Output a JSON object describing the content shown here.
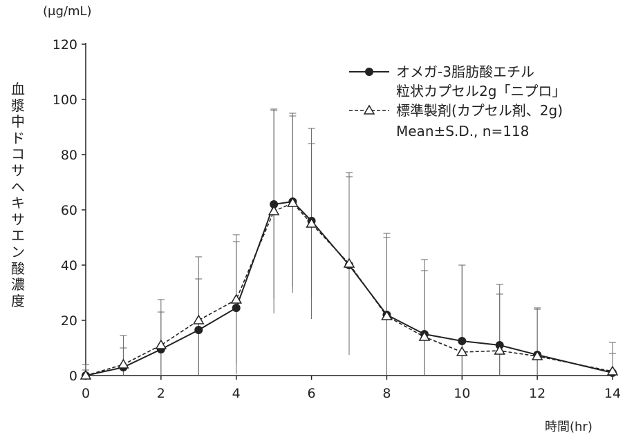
{
  "chart_data": {
    "type": "line",
    "unit_label": "(μg/mL)",
    "ylabel": "血漿中ドコサヘキサエン酸濃度",
    "xlabel": "時間(hr)",
    "xlim": [
      0,
      14
    ],
    "ylim": [
      0,
      120
    ],
    "x_ticks": [
      "0",
      "2",
      "4",
      "6",
      "8",
      "10",
      "12",
      "14"
    ],
    "y_ticks": [
      "0",
      "20",
      "40",
      "60",
      "80",
      "100",
      "120"
    ],
    "x": [
      0,
      1,
      2,
      3,
      4,
      5,
      5.5,
      6,
      7,
      8,
      9,
      10,
      11,
      12,
      14
    ],
    "series": [
      {
        "name": "オメガ-3脂肪酸エチル粒状カプセル2g「ニプロ」",
        "name_line1": "オメガ-3脂肪酸エチル",
        "name_line2": "粒状カプセル2g「ニプロ」",
        "style": "solid",
        "marker": "filled-circle",
        "values": [
          0,
          3,
          9.5,
          16.5,
          24.5,
          62,
          63,
          56,
          40,
          22,
          15,
          12.5,
          11,
          7.5,
          1
        ],
        "sd": [
          2,
          7,
          13.5,
          18.5,
          24,
          34,
          31,
          28,
          32,
          28,
          23,
          27.5,
          18.5,
          16.5,
          7
        ]
      },
      {
        "name": "標準製剤(カプセル剤、2g)",
        "style": "dashed",
        "marker": "open-triangle",
        "values": [
          0,
          4,
          11,
          20,
          27.5,
          59.5,
          62.5,
          55,
          40.5,
          21.5,
          14,
          8.5,
          9,
          7,
          1.5
        ],
        "sd": [
          4,
          10.5,
          16.5,
          23,
          23.5,
          37,
          32.5,
          34.5,
          33,
          30,
          28,
          31.5,
          24,
          17.5,
          10.5
        ]
      }
    ],
    "annotation": "Mean±S.D., n=118",
    "legend_position": "top-right",
    "grid": false
  }
}
